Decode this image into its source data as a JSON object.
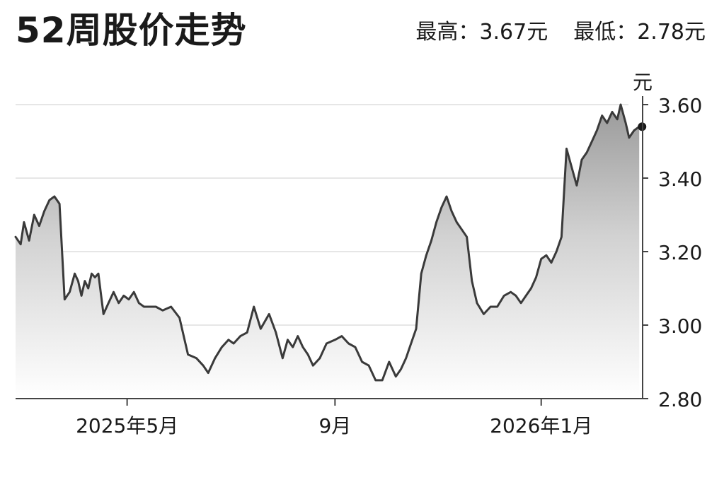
{
  "title": "52周股价走势",
  "stats": {
    "high_label": "最高：",
    "high_value": "3.67元",
    "low_label": "最低：",
    "low_value": "2.78元"
  },
  "chart_data": {
    "type": "area",
    "title": "52周股价走势",
    "ylabel": "元",
    "xlabel": "",
    "ylim": [
      2.8,
      3.6
    ],
    "yticks": [
      "3.60",
      "3.40",
      "3.20",
      "3.00",
      "2.80"
    ],
    "ytick_values": [
      3.6,
      3.4,
      3.2,
      3.0,
      2.8
    ],
    "xlim": [
      "2025-02-24",
      "2026-03-02"
    ],
    "xticks": [
      {
        "label": "2025年5月",
        "date": "2025-05-01"
      },
      {
        "label": "9月",
        "date": "2025-09-01"
      },
      {
        "label": "2026年1月",
        "date": "2026-01-01"
      }
    ],
    "grid": "horizontal",
    "last_point_marker": true,
    "colors": {
      "line": "#3a3a3a",
      "fill_top": "#9a9a9a",
      "fill_bottom": "#ffffff",
      "grid": "#dddddd",
      "axis": "#444444"
    },
    "series": [
      {
        "x": [
          "2025-02-24",
          "2025-02-27",
          "2025-03-01",
          "2025-03-04",
          "2025-03-07",
          "2025-03-10",
          "2025-03-13",
          "2025-03-16",
          "2025-03-19",
          "2025-03-22",
          "2025-03-25",
          "2025-03-28",
          "2025-03-31",
          "2025-04-02",
          "2025-04-04",
          "2025-04-06",
          "2025-04-08",
          "2025-04-10",
          "2025-04-12",
          "2025-04-14",
          "2025-04-17",
          "2025-04-20",
          "2025-04-23",
          "2025-04-26",
          "2025-04-29",
          "2025-05-02",
          "2025-05-05",
          "2025-05-08",
          "2025-05-11",
          "2025-05-14",
          "2025-05-18",
          "2025-05-22",
          "2025-05-27",
          "2025-06-01",
          "2025-06-06",
          "2025-06-11",
          "2025-06-15",
          "2025-06-18",
          "2025-06-22",
          "2025-06-26",
          "2025-06-30",
          "2025-07-03",
          "2025-07-07",
          "2025-07-11",
          "2025-07-15",
          "2025-07-19",
          "2025-07-24",
          "2025-07-28",
          "2025-08-01",
          "2025-08-04",
          "2025-08-07",
          "2025-08-10",
          "2025-08-13",
          "2025-08-16",
          "2025-08-19",
          "2025-08-23",
          "2025-08-27",
          "2025-09-01",
          "2025-09-05",
          "2025-09-09",
          "2025-09-13",
          "2025-09-17",
          "2025-09-21",
          "2025-09-25",
          "2025-09-29",
          "2025-10-03",
          "2025-10-07",
          "2025-10-10",
          "2025-10-13",
          "2025-10-16",
          "2025-10-19",
          "2025-10-22",
          "2025-10-25",
          "2025-10-28",
          "2025-10-31",
          "2025-11-03",
          "2025-11-06",
          "2025-11-09",
          "2025-11-12",
          "2025-11-15",
          "2025-11-18",
          "2025-11-21",
          "2025-11-24",
          "2025-11-28",
          "2025-12-02",
          "2025-12-06",
          "2025-12-10",
          "2025-12-14",
          "2025-12-17",
          "2025-12-20",
          "2025-12-23",
          "2025-12-26",
          "2025-12-29",
          "2026-01-01",
          "2026-01-04",
          "2026-01-07",
          "2026-01-10",
          "2026-01-13",
          "2026-01-16",
          "2026-01-19",
          "2026-01-22",
          "2026-01-25",
          "2026-01-28",
          "2026-01-31",
          "2026-02-03",
          "2026-02-06",
          "2026-02-09",
          "2026-02-12",
          "2026-02-15",
          "2026-02-17",
          "2026-02-20",
          "2026-02-22",
          "2026-02-25",
          "2026-02-28"
        ],
        "values": [
          3.24,
          3.22,
          3.28,
          3.23,
          3.3,
          3.27,
          3.31,
          3.34,
          3.35,
          3.33,
          3.07,
          3.09,
          3.14,
          3.12,
          3.08,
          3.12,
          3.1,
          3.14,
          3.13,
          3.14,
          3.03,
          3.06,
          3.09,
          3.06,
          3.08,
          3.07,
          3.09,
          3.06,
          3.05,
          3.05,
          3.05,
          3.04,
          3.05,
          3.02,
          2.92,
          2.91,
          2.89,
          2.87,
          2.91,
          2.94,
          2.96,
          2.95,
          2.97,
          2.98,
          3.05,
          2.99,
          3.03,
          2.98,
          2.91,
          2.96,
          2.94,
          2.97,
          2.94,
          2.92,
          2.89,
          2.91,
          2.95,
          2.96,
          2.97,
          2.95,
          2.94,
          2.9,
          2.89,
          2.85,
          2.85,
          2.9,
          2.86,
          2.88,
          2.91,
          2.95,
          2.99,
          3.14,
          3.19,
          3.23,
          3.28,
          3.32,
          3.35,
          3.31,
          3.28,
          3.26,
          3.24,
          3.12,
          3.06,
          3.03,
          3.05,
          3.05,
          3.08,
          3.09,
          3.08,
          3.06,
          3.08,
          3.1,
          3.13,
          3.18,
          3.19,
          3.17,
          3.2,
          3.24,
          3.48,
          3.43,
          3.38,
          3.45,
          3.47,
          3.5,
          3.53,
          3.57,
          3.55,
          3.58,
          3.56,
          3.6,
          3.55,
          3.51,
          3.53,
          3.54
        ]
      }
    ]
  }
}
